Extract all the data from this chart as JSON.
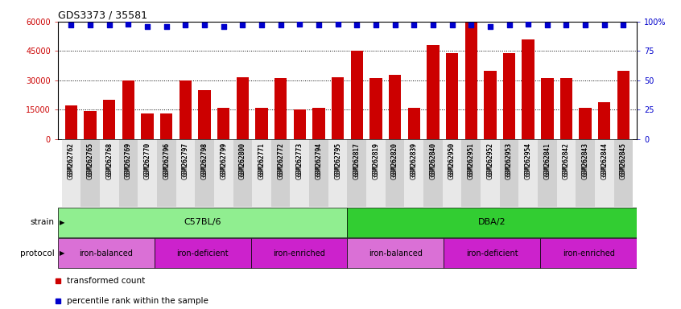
{
  "title": "GDS3373 / 35581",
  "categories": [
    "GSM262762",
    "GSM262765",
    "GSM262768",
    "GSM262769",
    "GSM262770",
    "GSM262796",
    "GSM262797",
    "GSM262798",
    "GSM262799",
    "GSM262800",
    "GSM262771",
    "GSM262772",
    "GSM262773",
    "GSM262794",
    "GSM262795",
    "GSM262817",
    "GSM262819",
    "GSM262820",
    "GSM262839",
    "GSM262840",
    "GSM262950",
    "GSM262951",
    "GSM262952",
    "GSM262953",
    "GSM262954",
    "GSM262841",
    "GSM262842",
    "GSM262843",
    "GSM262844",
    "GSM262845"
  ],
  "bar_values": [
    17000,
    14500,
    20000,
    30000,
    13000,
    13000,
    30000,
    25000,
    16000,
    31500,
    16000,
    31000,
    15000,
    16000,
    31500,
    45000,
    31000,
    33000,
    16000,
    48000,
    44000,
    63000,
    35000,
    44000,
    51000,
    31000,
    31000,
    16000,
    19000,
    35000
  ],
  "percentile_values": [
    97,
    97,
    97,
    98,
    96,
    96,
    97,
    97,
    96,
    97,
    97,
    97,
    98,
    97,
    98,
    97,
    97,
    97,
    97,
    97,
    97,
    97,
    96,
    97,
    98,
    97,
    97,
    97,
    97,
    97
  ],
  "bar_color": "#cc0000",
  "percentile_color": "#0000cc",
  "ylim_left": [
    0,
    60000
  ],
  "ylim_right": [
    0,
    100
  ],
  "yticks_left": [
    0,
    15000,
    30000,
    45000,
    60000
  ],
  "yticks_right": [
    0,
    25,
    50,
    75,
    100
  ],
  "strain_labels": [
    {
      "label": "C57BL/6",
      "start": 0,
      "end": 15,
      "color": "#90ee90"
    },
    {
      "label": "DBA/2",
      "start": 15,
      "end": 30,
      "color": "#32cd32"
    }
  ],
  "protocol_groups": [
    {
      "label": "iron-balanced",
      "start": 0,
      "end": 5,
      "color": "#da70d6"
    },
    {
      "label": "iron-deficient",
      "start": 5,
      "end": 10,
      "color": "#cc44cc"
    },
    {
      "label": "iron-enriched",
      "start": 10,
      "end": 15,
      "color": "#da70d6"
    },
    {
      "label": "iron-balanced",
      "start": 15,
      "end": 20,
      "color": "#da70d6"
    },
    {
      "label": "iron-deficient",
      "start": 20,
      "end": 25,
      "color": "#cc44cc"
    },
    {
      "label": "iron-enriched",
      "start": 25,
      "end": 30,
      "color": "#da70d6"
    }
  ],
  "legend_bar_label": "transformed count",
  "legend_pct_label": "percentile rank within the sample",
  "tick_color_left": "#cc0000",
  "tick_color_right": "#0000cc",
  "background_color": "#ffffff"
}
